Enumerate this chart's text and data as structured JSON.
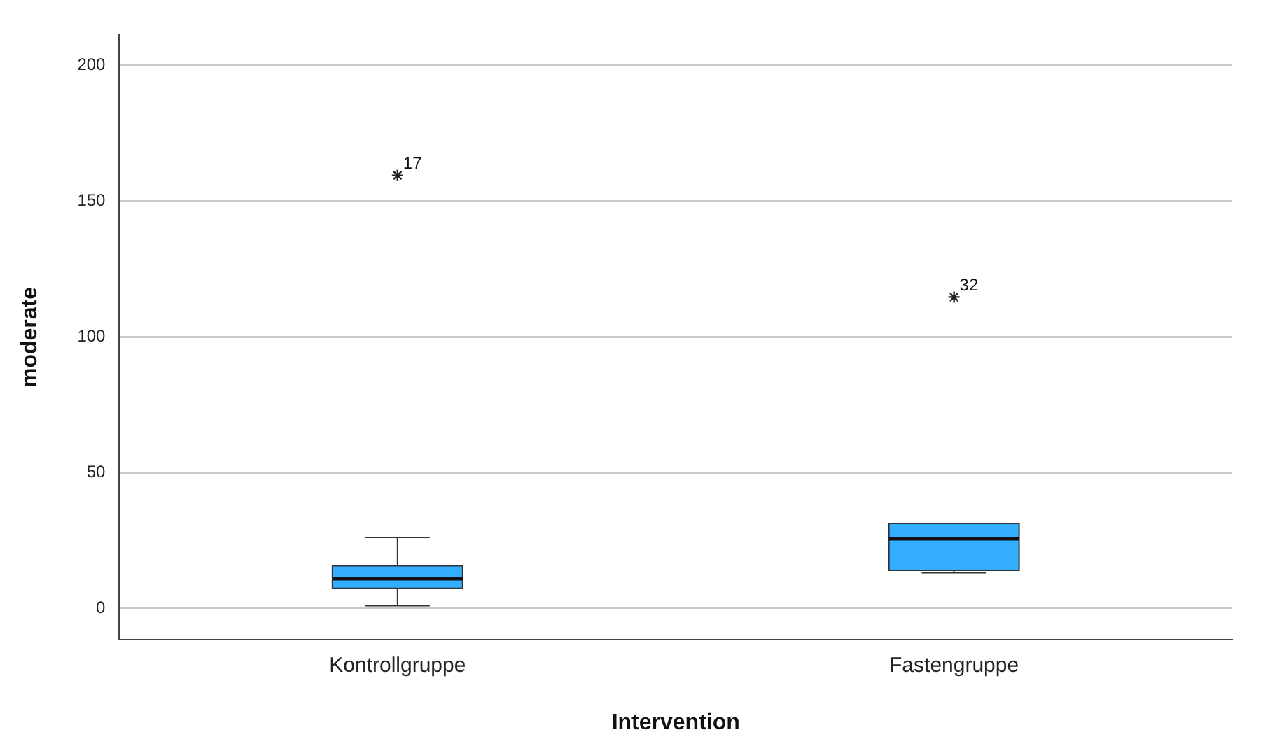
{
  "chart_data": {
    "type": "box",
    "xlabel": "Intervention",
    "ylabel": "moderate",
    "categories": [
      "Kontrollgruppe",
      "Fastengruppe"
    ],
    "boxes": [
      {
        "low": 0.9,
        "q1": 7.3,
        "median": 10.8,
        "q3": 15.6,
        "high": 26
      },
      {
        "low": 13,
        "q1": 13.9,
        "median": 25.5,
        "q3": 31.2,
        "high": 31.2
      }
    ],
    "color": "#33adff",
    "series": [
      {
        "type": "scatter",
        "color": "#222222",
        "x": [
          "Kontrollgruppe",
          "Fastengruppe"
        ],
        "values": [
          159.4,
          114.6
        ]
      }
    ],
    "marker": "cross",
    "ylim": [
      -11.5,
      211
    ],
    "yticks": [
      0,
      50,
      100,
      150,
      200
    ],
    "grid": "y",
    "annotations": [
      {
        "text": "17",
        "x": "Kontrollgruppe",
        "y": 159.4
      },
      {
        "text": "32",
        "x": "Fastengruppe",
        "y": 114.6
      }
    ]
  }
}
